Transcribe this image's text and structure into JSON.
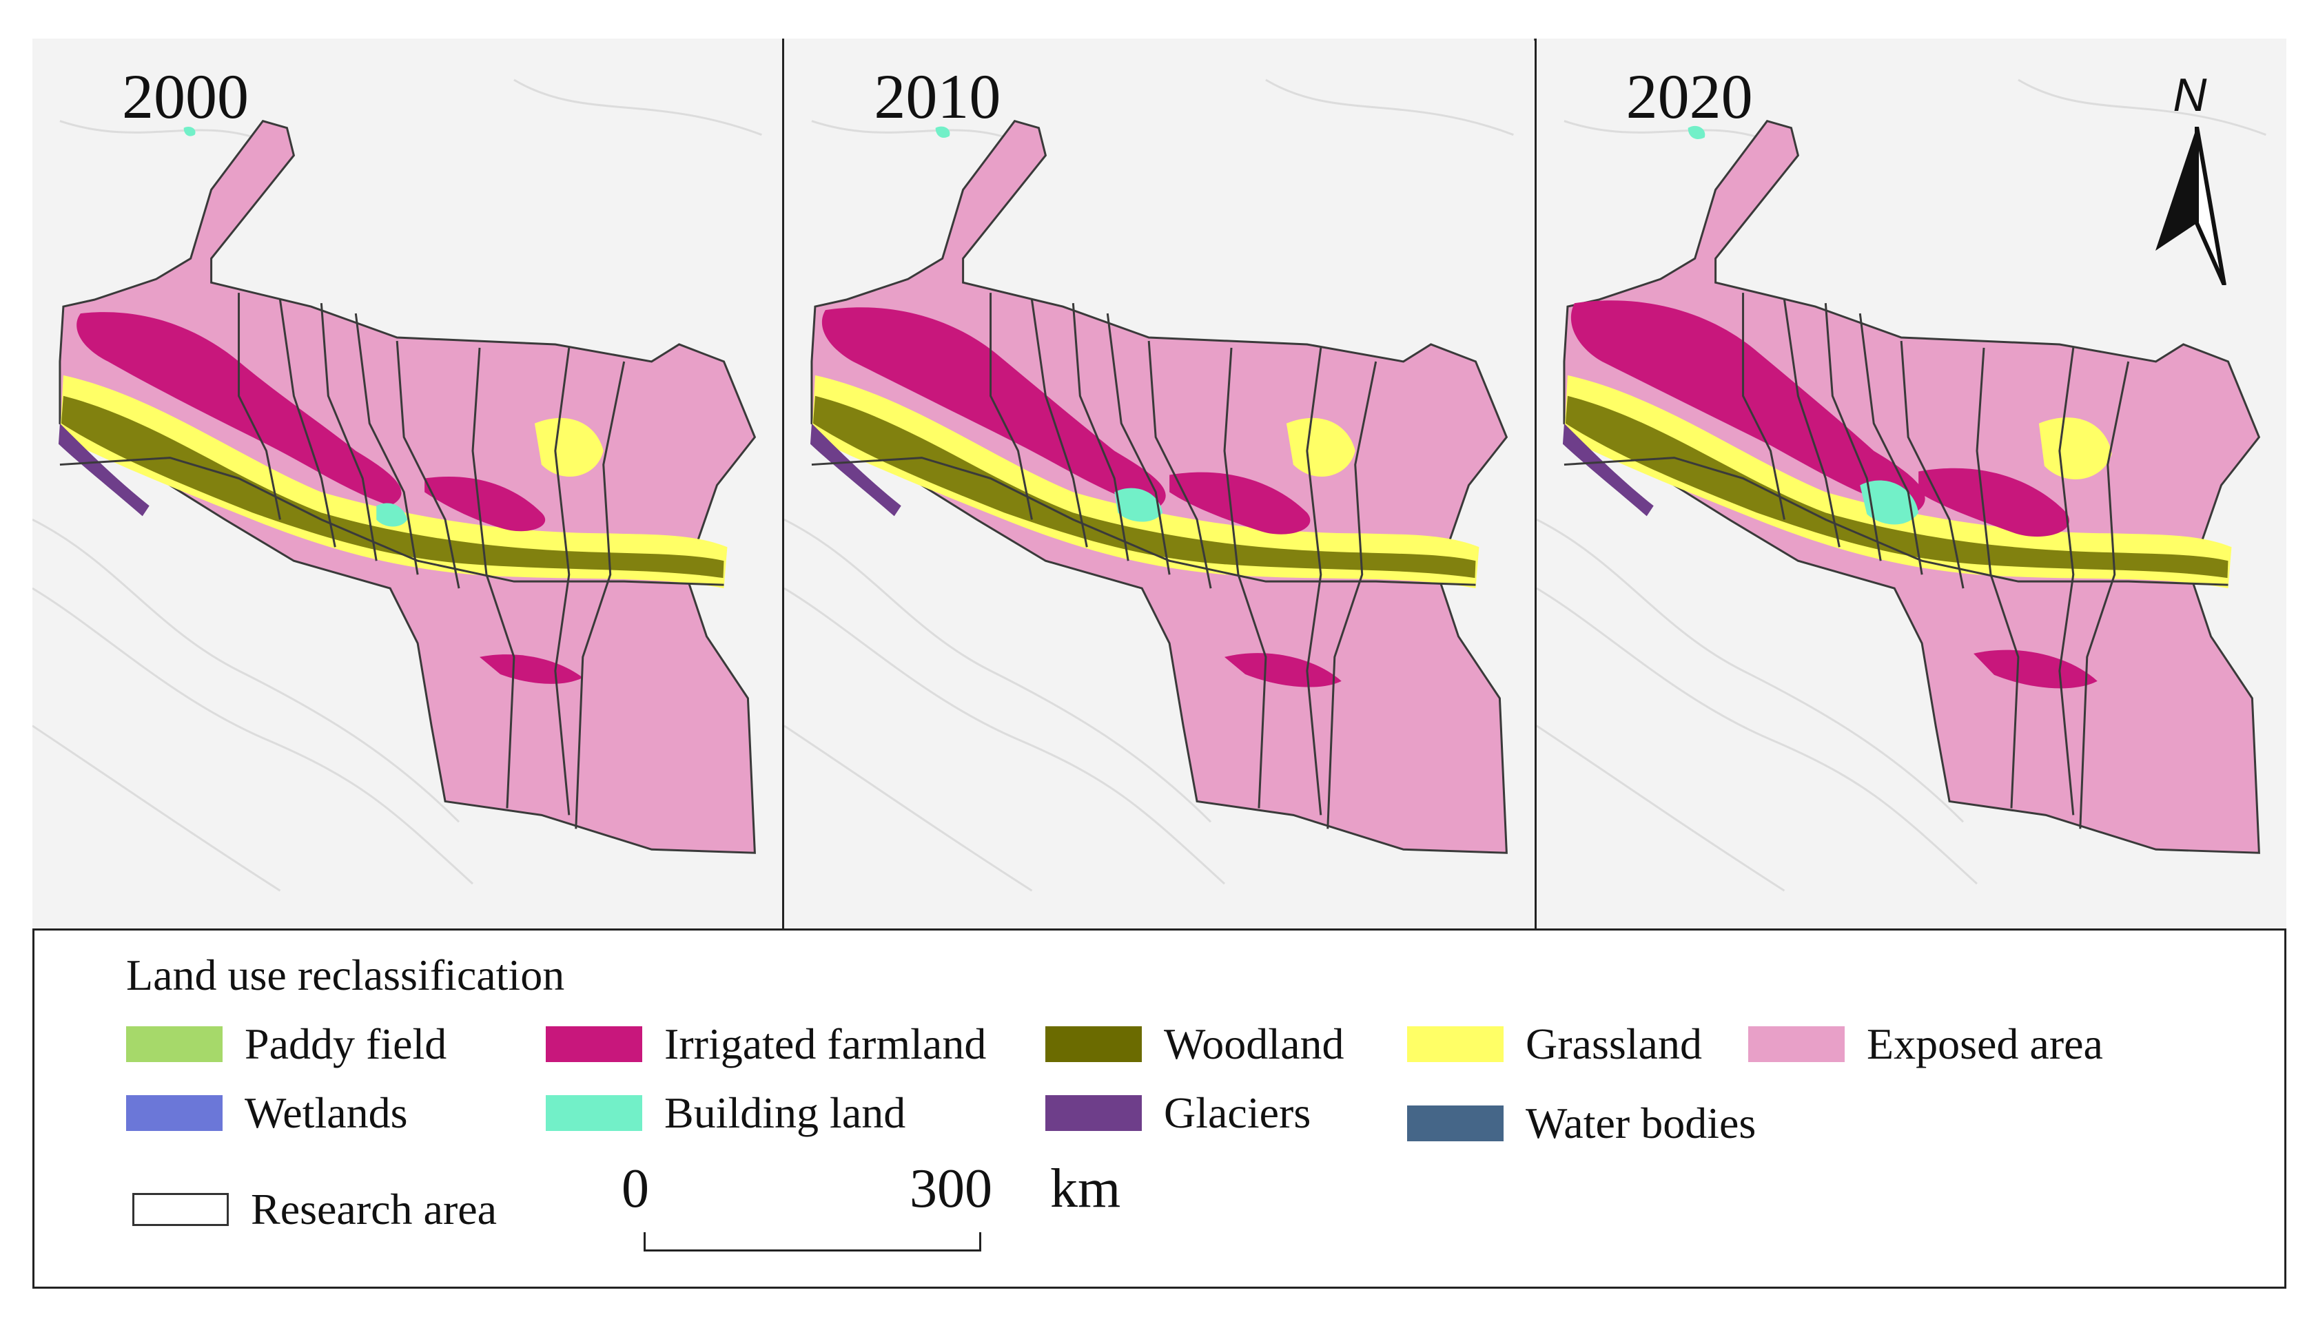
{
  "panels": [
    {
      "year": "2000"
    },
    {
      "year": "2010"
    },
    {
      "year": "2020"
    }
  ],
  "north_arrow": {
    "letter": "N",
    "icon": "north-arrow-icon"
  },
  "legend": {
    "title": "Land use reclassification",
    "items": [
      {
        "label": "Paddy field",
        "color": "#a6d96a"
      },
      {
        "label": "Irrigated farmland",
        "color": "#c8177c"
      },
      {
        "label": "Woodland",
        "color": "#6b6b00"
      },
      {
        "label": "Grassland",
        "color": "#ffff66"
      },
      {
        "label": "Exposed area",
        "color": "#e8a0c8"
      },
      {
        "label": "Wetlands",
        "color": "#6b77d8"
      },
      {
        "label": "Building land",
        "color": "#72f0c8"
      },
      {
        "label": "Glaciers",
        "color": "#6e3e8a"
      },
      {
        "label": "Water bodies",
        "color": "#456688"
      }
    ],
    "research_area": "Research area"
  },
  "scale_bar": {
    "start": "0",
    "end": "300",
    "unit": "km"
  },
  "colors": {
    "exposed": "#e8a0c8",
    "irrigated": "#c8177c",
    "grassland": "#ffff66",
    "woodland": "#6b6b00",
    "building": "#72f0c8",
    "glaciers": "#6e3e8a",
    "boundary": "#3a3a3a",
    "terrain": "#f3f3f3"
  }
}
